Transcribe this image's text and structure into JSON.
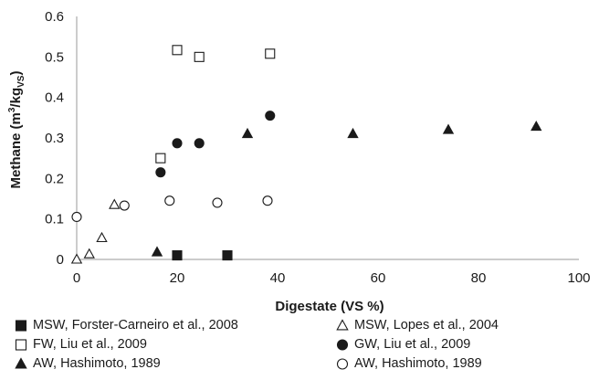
{
  "chart_data": {
    "type": "scatter",
    "title": "",
    "xlabel": "Digestate (VS %)",
    "ylabel_main": "Methane (m",
    "ylabel_sup": "3",
    "ylabel_mid": "/kg",
    "ylabel_sub": "VS",
    "ylabel_end": ")",
    "xlim": [
      0,
      100
    ],
    "ylim": [
      0,
      0.6
    ],
    "xticks": [
      "0",
      "20",
      "40",
      "60",
      "80",
      "100"
    ],
    "yticks": [
      "0",
      "0.1",
      "0.2",
      "0.3",
      "0.4",
      "0.5",
      "0.6"
    ],
    "grid": false,
    "legend_position": "bottom",
    "series": [
      {
        "name": "MSW, Forster-Carneiro et al., 2008",
        "marker": "square",
        "fill": "#1a1a1a",
        "points": [
          [
            20,
            0.01
          ],
          [
            30,
            0.01
          ]
        ]
      },
      {
        "name": "MSW, Lopes et al., 2004",
        "marker": "triangle",
        "fill": "none",
        "points": [
          [
            0,
            0.0
          ],
          [
            2.5,
            0.013
          ],
          [
            5,
            0.053
          ],
          [
            7.5,
            0.135
          ]
        ]
      },
      {
        "name": "FW, Liu et al., 2009",
        "marker": "square",
        "fill": "none",
        "points": [
          [
            16.7,
            0.25
          ],
          [
            20,
            0.517
          ],
          [
            24.4,
            0.5
          ],
          [
            38.5,
            0.508
          ]
        ]
      },
      {
        "name": "GW, Liu et al., 2009",
        "marker": "circle",
        "fill": "#1a1a1a",
        "points": [
          [
            16.7,
            0.215
          ],
          [
            20,
            0.287
          ],
          [
            24.4,
            0.287
          ],
          [
            38.5,
            0.355
          ]
        ]
      },
      {
        "name": "AW, Hashimoto, 1989",
        "marker": "triangle",
        "fill": "#1a1a1a",
        "points": [
          [
            16,
            0.018
          ],
          [
            34,
            0.31
          ],
          [
            55,
            0.31
          ],
          [
            74,
            0.32
          ],
          [
            91.5,
            0.328
          ]
        ]
      },
      {
        "name": "AW, Hashimoto, 1989",
        "marker": "circle",
        "fill": "none",
        "points": [
          [
            0,
            0.105
          ],
          [
            9.5,
            0.133
          ],
          [
            18.5,
            0.145
          ],
          [
            28,
            0.14
          ],
          [
            38,
            0.145
          ]
        ]
      }
    ]
  },
  "colors": {
    "ink": "#1a1a1a",
    "axis": "#9a9a9a"
  }
}
